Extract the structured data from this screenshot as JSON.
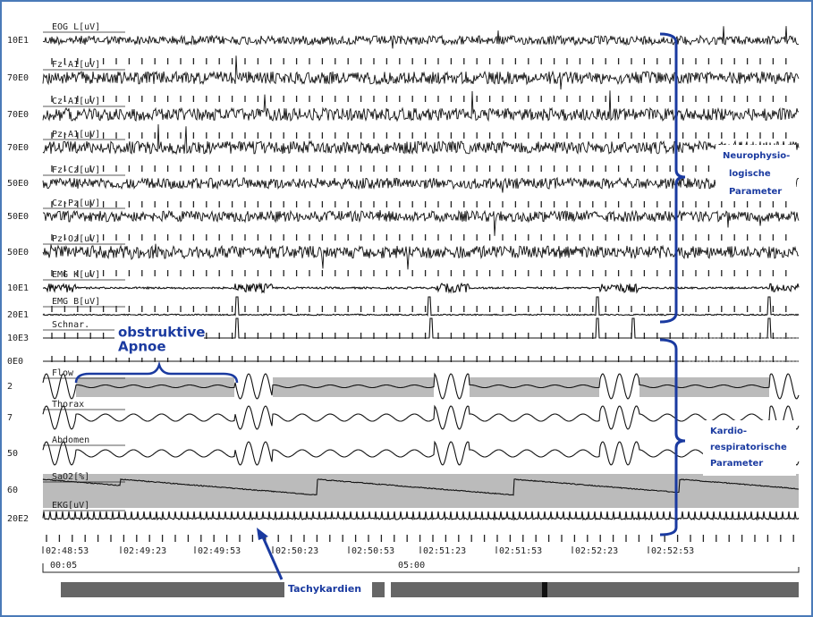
{
  "channels": [
    {
      "label": "EOG L[uV]",
      "scale": "10E1"
    },
    {
      "label": "Fz-A1[uV]",
      "scale": "70E0"
    },
    {
      "label": "Cz-A1[uV]",
      "scale": "70E0"
    },
    {
      "label": "Pz-A1[uV]",
      "scale": "70E0"
    },
    {
      "label": "Fz-Cz[uV]",
      "scale": "50E0"
    },
    {
      "label": "Cz-Pz[uV]",
      "scale": "50E0"
    },
    {
      "label": "Pz-Oz[uV]",
      "scale": "50E0"
    },
    {
      "label": "EMG K[uV]",
      "scale": "10E1"
    },
    {
      "label": "EMG B[uV]",
      "scale": "20E1"
    },
    {
      "label": "Schnar.",
      "scale": "10E3"
    },
    {
      "label": "Flow",
      "scale": "2"
    },
    {
      "label": "Thorax",
      "scale": "7"
    },
    {
      "label": "Abdomen",
      "scale": "50"
    },
    {
      "label": "SaO2[%]",
      "scale": "60"
    },
    {
      "label": "EKG[uV]",
      "scale": "20E2"
    }
  ],
  "extra_scale": "0E0",
  "time_labels": [
    "02:48:53",
    "02:49:23",
    "02:49:53",
    "02:50:23",
    "02:50:53",
    "02:51:23",
    "02:51:53",
    "02:52:23",
    "02:52:53"
  ],
  "epoch_labels": [
    "00:05",
    "05:00"
  ],
  "annotations": {
    "apnoe": [
      "obstruktive",
      "Apnoe"
    ],
    "neuro": [
      "Neurophysio-",
      "logische",
      "Parameter"
    ],
    "kardio": [
      "Kardio-",
      "respiratorische",
      "Parameter"
    ],
    "tachy": "Tachykardien"
  }
}
